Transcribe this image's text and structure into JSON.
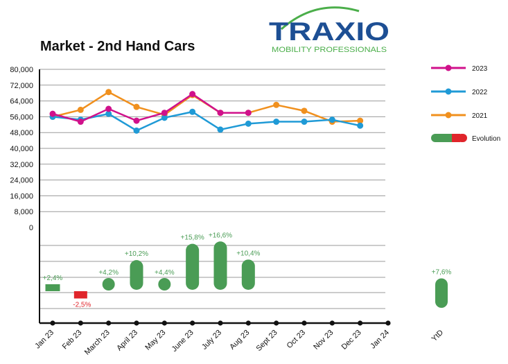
{
  "header": {
    "title": "Market - 2nd Hand Cars",
    "logo_word": "TRAXIO",
    "logo_tagline": "MOBILITY PROFESSIONALS"
  },
  "colors": {
    "s2023": "#d0118b",
    "s2022": "#1f9ad6",
    "s2021": "#f0901e",
    "evo_pos": "#4a9c55",
    "evo_neg": "#e0252b",
    "logo_blue": "#1d4f94",
    "logo_green": "#4bae4a"
  },
  "chart_data": {
    "type": "line",
    "title": "Market - 2nd Hand Cars",
    "categories": [
      "Jan 23",
      "Feb 23",
      "March 23",
      "April 23",
      "May 23",
      "June 23",
      "July 23",
      "Aug 23",
      "Sept 23",
      "Oct 23",
      "Nov 23",
      "Dec 23",
      "Jan 24"
    ],
    "y_ticks": [
      "80,000",
      "72,000",
      "64,000",
      "56,000",
      "48,000",
      "40,000",
      "32,000",
      "24,000",
      "16,000",
      "8,000",
      "0"
    ],
    "ylim": [
      0,
      80000
    ],
    "grid": true,
    "legend_position": "right",
    "series": [
      {
        "name": "2023",
        "color": "#d0118b",
        "values": [
          57500,
          53500,
          60000,
          54000,
          58000,
          67500,
          58000,
          58000,
          null,
          null,
          null,
          null,
          null
        ]
      },
      {
        "name": "2022",
        "color": "#1f9ad6",
        "values": [
          56000,
          54500,
          57500,
          49000,
          55500,
          58500,
          49500,
          52500,
          53500,
          53500,
          54500,
          51500,
          null
        ]
      },
      {
        "name": "2021",
        "color": "#f0901e",
        "values": [
          56000,
          59500,
          68500,
          61000,
          57000,
          67000,
          58000,
          58000,
          62000,
          59000,
          53500,
          54000,
          null
        ]
      }
    ],
    "evolution": {
      "name": "Evolution",
      "values_pct": [
        2.4,
        -2.5,
        4.2,
        10.2,
        4.4,
        15.8,
        16.6,
        10.4,
        null,
        null,
        null,
        null,
        null
      ],
      "labels": [
        "+2,4%",
        "-2,5%",
        "+4,2%",
        "+10,2%",
        "+4,4%",
        "+15,8%",
        "+16,6%",
        "+10,4%",
        "",
        "",
        "",
        "",
        ""
      ],
      "ytd_category": "YtD",
      "ytd_pct": 7.6,
      "ytd_label": "+7,6%"
    }
  }
}
